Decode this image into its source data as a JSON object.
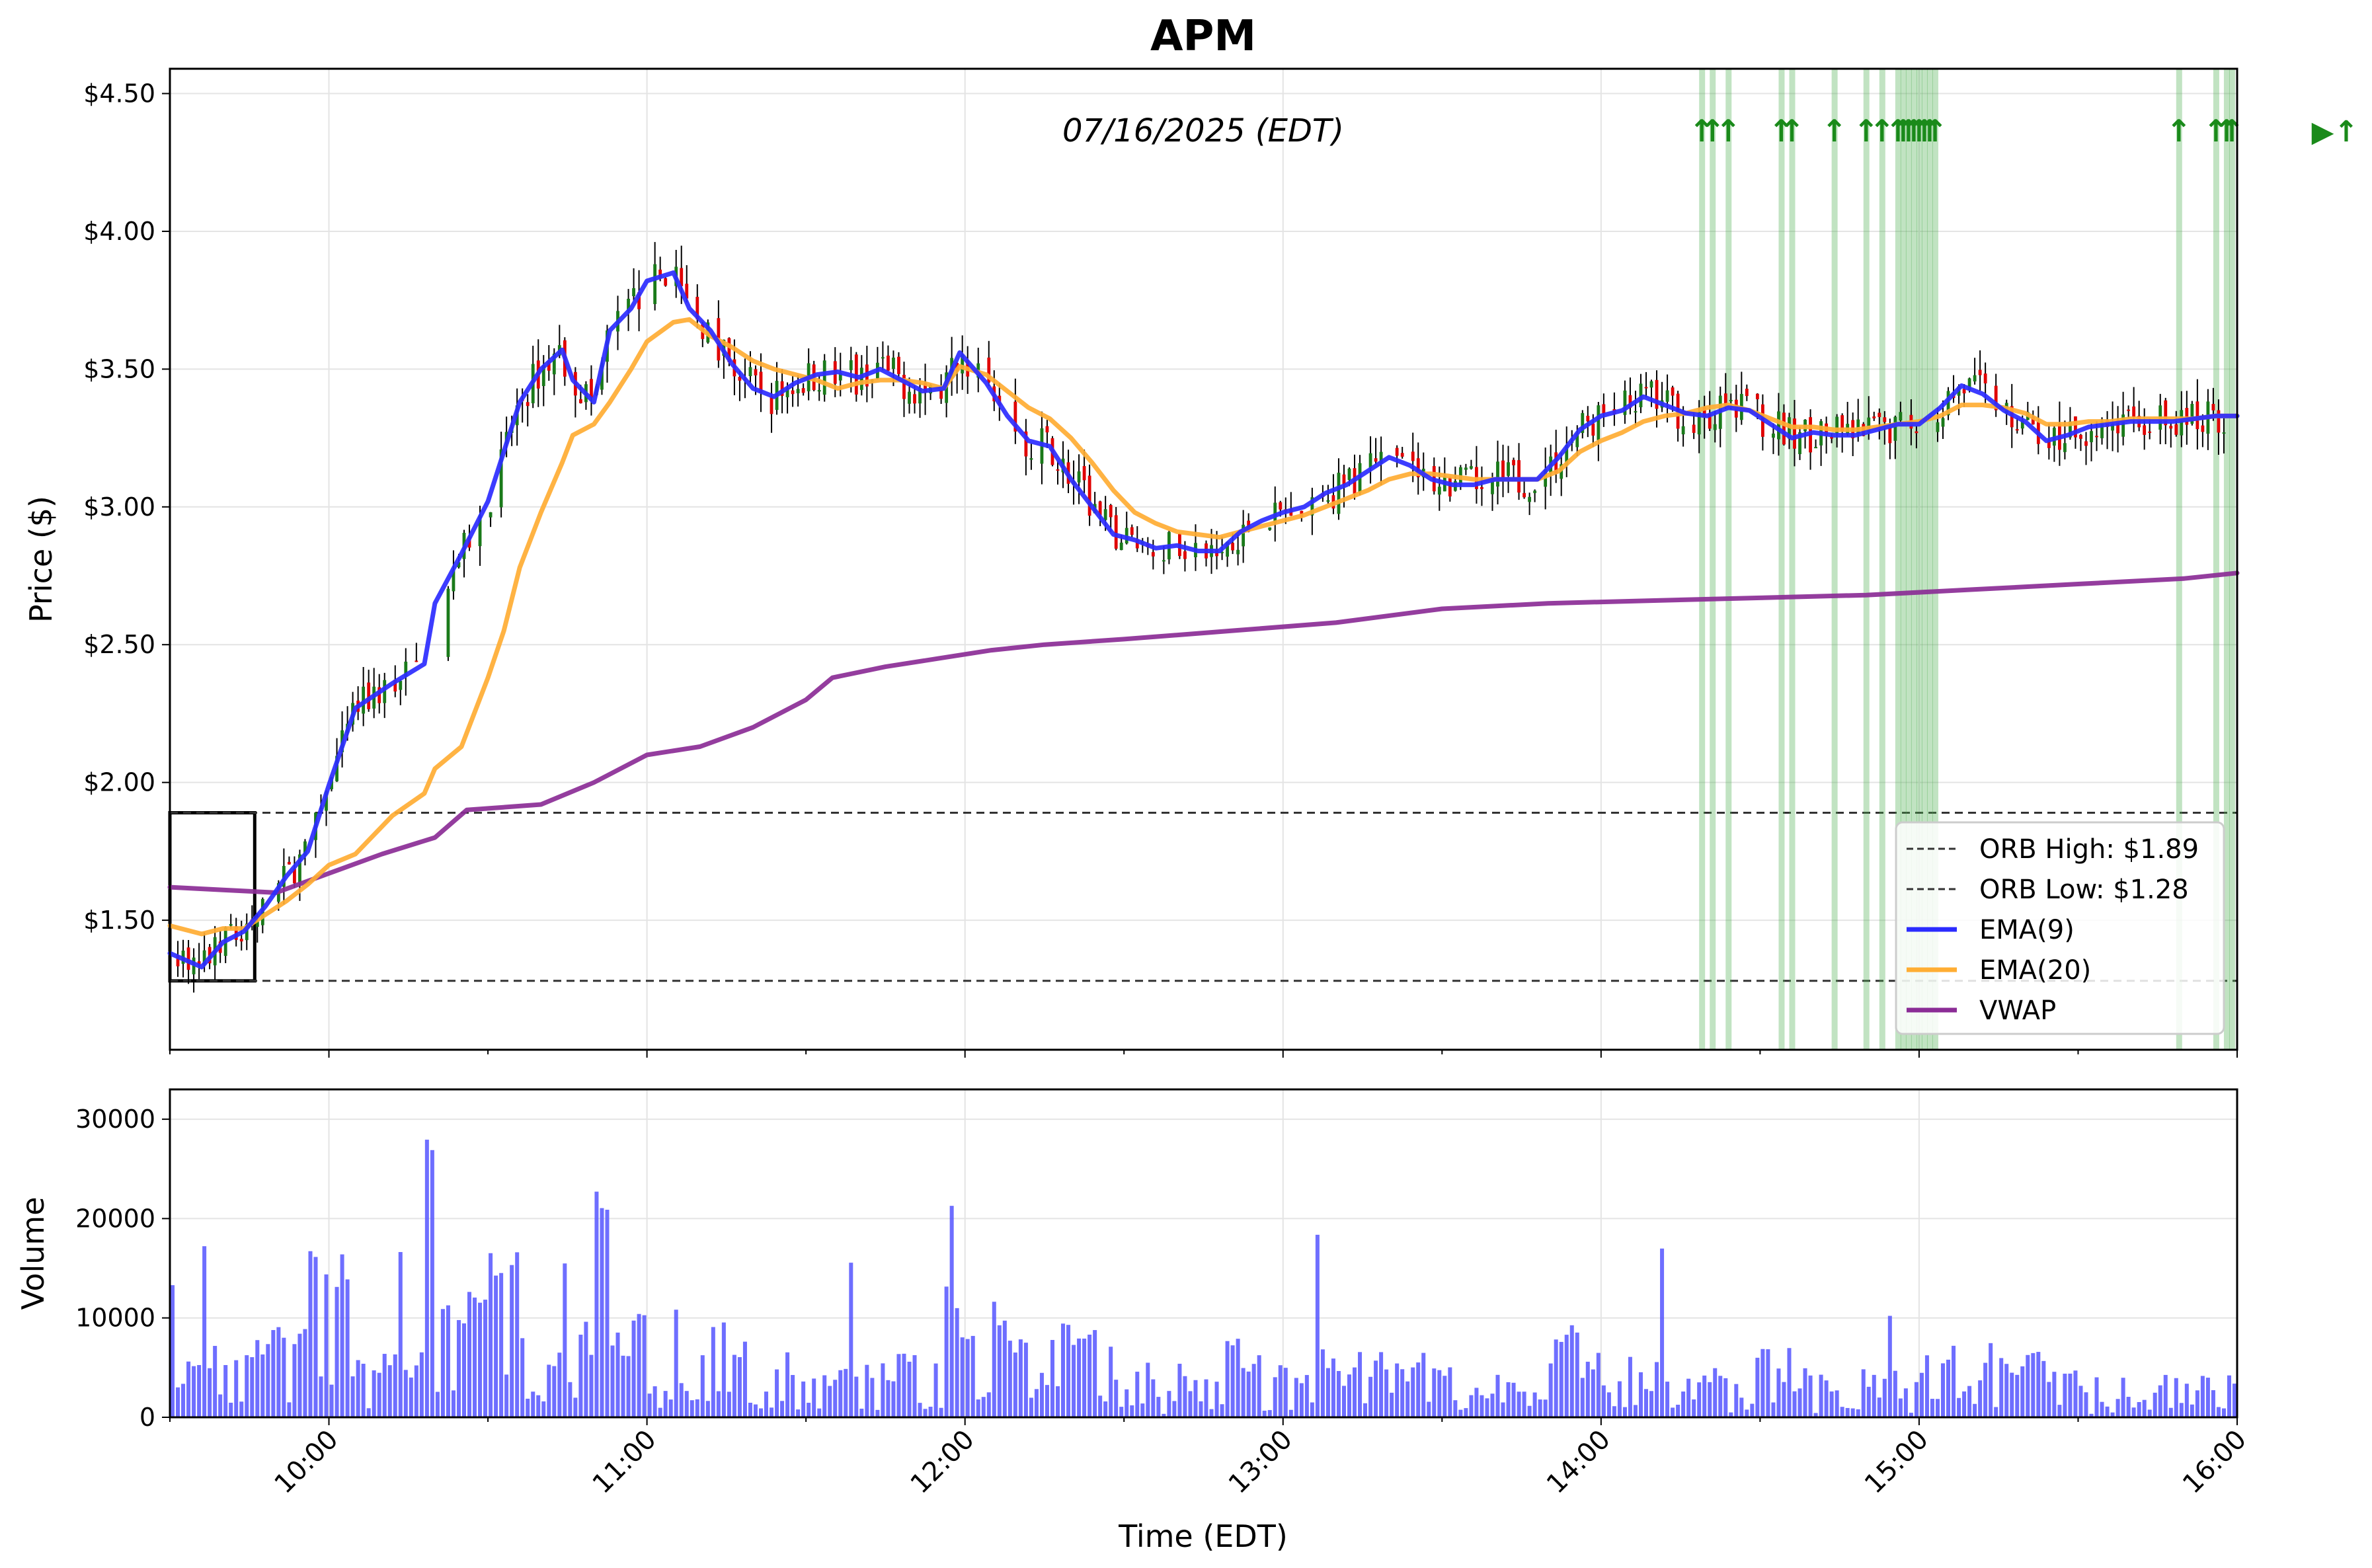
{
  "chart_data": {
    "type": "candlestick",
    "title": "APM",
    "date_label": "07/16/2025 (EDT)",
    "xlabel": "Time (EDT)",
    "x_range": [
      "09:30",
      "16:00"
    ],
    "x_ticks": [
      "10:00",
      "11:00",
      "12:00",
      "13:00",
      "14:00",
      "15:00",
      "16:00"
    ],
    "price_panel": {
      "ylabel": "Price ($)",
      "ylim": [
        1.03,
        4.59
      ],
      "y_ticks": [
        "$1.50",
        "$2.00",
        "$2.50",
        "$3.00",
        "$3.50",
        "$4.00",
        "$4.50"
      ],
      "y_tick_values": [
        1.5,
        2.0,
        2.5,
        3.0,
        3.5,
        4.0,
        4.5
      ],
      "orb_high": 1.89,
      "orb_low": 1.28,
      "orb_window": [
        "09:30",
        "09:46"
      ],
      "legend": [
        {
          "label": "ORB High: $1.89",
          "style": "dashed",
          "color": "#333333"
        },
        {
          "label": "ORB Low: $1.28",
          "style": "dashed",
          "color": "#333333"
        },
        {
          "label": "EMA(9)",
          "style": "solid",
          "color": "#2b2bff"
        },
        {
          "label": "EMA(20)",
          "style": "solid",
          "color": "#ffad33"
        },
        {
          "label": "VWAP",
          "style": "solid",
          "color": "#8b2c96"
        }
      ],
      "ema9": [
        [
          "09:30",
          1.38
        ],
        [
          "09:36",
          1.33
        ],
        [
          "09:40",
          1.42
        ],
        [
          "09:44",
          1.46
        ],
        [
          "09:48",
          1.55
        ],
        [
          "09:52",
          1.66
        ],
        [
          "09:56",
          1.75
        ],
        [
          "10:00",
          1.99
        ],
        [
          "10:05",
          2.27
        ],
        [
          "10:12",
          2.36
        ],
        [
          "10:18",
          2.43
        ],
        [
          "10:20",
          2.65
        ],
        [
          "10:25",
          2.83
        ],
        [
          "10:30",
          3.02
        ],
        [
          "10:33",
          3.2
        ],
        [
          "10:36",
          3.38
        ],
        [
          "10:40",
          3.5
        ],
        [
          "10:44",
          3.57
        ],
        [
          "10:46",
          3.46
        ],
        [
          "10:50",
          3.38
        ],
        [
          "10:53",
          3.64
        ],
        [
          "10:57",
          3.72
        ],
        [
          "11:00",
          3.82
        ],
        [
          "11:05",
          3.85
        ],
        [
          "11:08",
          3.72
        ],
        [
          "11:12",
          3.64
        ],
        [
          "11:16",
          3.52
        ],
        [
          "11:20",
          3.43
        ],
        [
          "11:24",
          3.4
        ],
        [
          "11:28",
          3.45
        ],
        [
          "11:32",
          3.48
        ],
        [
          "11:36",
          3.49
        ],
        [
          "11:40",
          3.47
        ],
        [
          "11:44",
          3.5
        ],
        [
          "11:48",
          3.46
        ],
        [
          "11:52",
          3.42
        ],
        [
          "11:56",
          3.43
        ],
        [
          "11:59",
          3.56
        ],
        [
          "12:04",
          3.45
        ],
        [
          "12:08",
          3.33
        ],
        [
          "12:12",
          3.24
        ],
        [
          "12:16",
          3.22
        ],
        [
          "12:20",
          3.1
        ],
        [
          "12:24",
          3.0
        ],
        [
          "12:28",
          2.9
        ],
        [
          "12:32",
          2.88
        ],
        [
          "12:36",
          2.85
        ],
        [
          "12:40",
          2.86
        ],
        [
          "12:44",
          2.84
        ],
        [
          "12:48",
          2.84
        ],
        [
          "12:52",
          2.91
        ],
        [
          "12:56",
          2.95
        ],
        [
          "13:00",
          2.98
        ],
        [
          "13:04",
          3.0
        ],
        [
          "13:08",
          3.05
        ],
        [
          "13:12",
          3.08
        ],
        [
          "13:16",
          3.13
        ],
        [
          "13:20",
          3.18
        ],
        [
          "13:24",
          3.15
        ],
        [
          "13:28",
          3.1
        ],
        [
          "13:32",
          3.08
        ],
        [
          "13:36",
          3.08
        ],
        [
          "13:40",
          3.1
        ],
        [
          "13:44",
          3.1
        ],
        [
          "13:48",
          3.1
        ],
        [
          "13:52",
          3.18
        ],
        [
          "13:56",
          3.28
        ],
        [
          "14:00",
          3.33
        ],
        [
          "14:04",
          3.35
        ],
        [
          "14:08",
          3.4
        ],
        [
          "14:12",
          3.37
        ],
        [
          "14:16",
          3.34
        ],
        [
          "14:20",
          3.33
        ],
        [
          "14:24",
          3.36
        ],
        [
          "14:28",
          3.35
        ],
        [
          "14:32",
          3.3
        ],
        [
          "14:36",
          3.25
        ],
        [
          "14:40",
          3.27
        ],
        [
          "14:44",
          3.26
        ],
        [
          "14:48",
          3.26
        ],
        [
          "14:52",
          3.28
        ],
        [
          "14:56",
          3.3
        ],
        [
          "15:00",
          3.3
        ],
        [
          "15:04",
          3.36
        ],
        [
          "15:08",
          3.44
        ],
        [
          "15:12",
          3.41
        ],
        [
          "15:16",
          3.35
        ],
        [
          "15:20",
          3.31
        ],
        [
          "15:24",
          3.24
        ],
        [
          "15:28",
          3.26
        ],
        [
          "15:32",
          3.29
        ],
        [
          "15:36",
          3.3
        ],
        [
          "15:40",
          3.31
        ],
        [
          "15:44",
          3.31
        ],
        [
          "15:48",
          3.31
        ],
        [
          "15:52",
          3.32
        ],
        [
          "15:56",
          3.33
        ],
        [
          "16:00",
          3.33
        ]
      ],
      "ema20": [
        [
          "09:30",
          1.48
        ],
        [
          "09:36",
          1.45
        ],
        [
          "09:40",
          1.47
        ],
        [
          "09:44",
          1.47
        ],
        [
          "09:48",
          1.52
        ],
        [
          "09:52",
          1.57
        ],
        [
          "09:56",
          1.63
        ],
        [
          "10:00",
          1.7
        ],
        [
          "10:05",
          1.74
        ],
        [
          "10:12",
          1.88
        ],
        [
          "10:18",
          1.96
        ],
        [
          "10:20",
          2.05
        ],
        [
          "10:25",
          2.13
        ],
        [
          "10:30",
          2.38
        ],
        [
          "10:33",
          2.55
        ],
        [
          "10:36",
          2.78
        ],
        [
          "10:40",
          2.98
        ],
        [
          "10:44",
          3.16
        ],
        [
          "10:46",
          3.26
        ],
        [
          "10:50",
          3.3
        ],
        [
          "10:53",
          3.38
        ],
        [
          "10:57",
          3.5
        ],
        [
          "11:00",
          3.6
        ],
        [
          "11:05",
          3.67
        ],
        [
          "11:08",
          3.68
        ],
        [
          "11:12",
          3.62
        ],
        [
          "11:16",
          3.58
        ],
        [
          "11:20",
          3.53
        ],
        [
          "11:24",
          3.5
        ],
        [
          "11:28",
          3.48
        ],
        [
          "11:32",
          3.46
        ],
        [
          "11:36",
          3.43
        ],
        [
          "11:40",
          3.45
        ],
        [
          "11:44",
          3.46
        ],
        [
          "11:48",
          3.46
        ],
        [
          "11:52",
          3.45
        ],
        [
          "11:56",
          3.43
        ],
        [
          "11:59",
          3.51
        ],
        [
          "12:04",
          3.48
        ],
        [
          "12:08",
          3.42
        ],
        [
          "12:12",
          3.36
        ],
        [
          "12:16",
          3.32
        ],
        [
          "12:20",
          3.25
        ],
        [
          "12:24",
          3.16
        ],
        [
          "12:28",
          3.06
        ],
        [
          "12:32",
          2.98
        ],
        [
          "12:36",
          2.94
        ],
        [
          "12:40",
          2.91
        ],
        [
          "12:44",
          2.9
        ],
        [
          "12:48",
          2.89
        ],
        [
          "12:52",
          2.91
        ],
        [
          "12:56",
          2.93
        ],
        [
          "13:00",
          2.95
        ],
        [
          "13:04",
          2.97
        ],
        [
          "13:08",
          3.0
        ],
        [
          "13:12",
          3.03
        ],
        [
          "13:16",
          3.06
        ],
        [
          "13:20",
          3.1
        ],
        [
          "13:24",
          3.12
        ],
        [
          "13:28",
          3.12
        ],
        [
          "13:32",
          3.11
        ],
        [
          "13:36",
          3.1
        ],
        [
          "13:40",
          3.1
        ],
        [
          "13:44",
          3.1
        ],
        [
          "13:48",
          3.1
        ],
        [
          "13:52",
          3.13
        ],
        [
          "13:56",
          3.2
        ],
        [
          "14:00",
          3.24
        ],
        [
          "14:04",
          3.27
        ],
        [
          "14:08",
          3.31
        ],
        [
          "14:12",
          3.33
        ],
        [
          "14:16",
          3.34
        ],
        [
          "14:20",
          3.36
        ],
        [
          "14:24",
          3.37
        ],
        [
          "14:28",
          3.35
        ],
        [
          "14:32",
          3.32
        ],
        [
          "14:36",
          3.29
        ],
        [
          "14:40",
          3.29
        ],
        [
          "14:44",
          3.28
        ],
        [
          "14:48",
          3.28
        ],
        [
          "14:52",
          3.29
        ],
        [
          "14:56",
          3.3
        ],
        [
          "15:00",
          3.31
        ],
        [
          "15:04",
          3.33
        ],
        [
          "15:08",
          3.37
        ],
        [
          "15:12",
          3.37
        ],
        [
          "15:16",
          3.36
        ],
        [
          "15:20",
          3.34
        ],
        [
          "15:24",
          3.3
        ],
        [
          "15:28",
          3.3
        ],
        [
          "15:32",
          3.31
        ],
        [
          "15:36",
          3.31
        ],
        [
          "15:40",
          3.32
        ],
        [
          "15:44",
          3.32
        ],
        [
          "15:48",
          3.32
        ],
        [
          "15:52",
          3.32
        ],
        [
          "15:56",
          3.33
        ],
        [
          "16:00",
          3.33
        ]
      ],
      "vwap": [
        [
          "09:30",
          1.62
        ],
        [
          "09:40",
          1.61
        ],
        [
          "09:50",
          1.6
        ],
        [
          "10:00",
          1.67
        ],
        [
          "10:10",
          1.74
        ],
        [
          "10:20",
          1.8
        ],
        [
          "10:26",
          1.9
        ],
        [
          "10:40",
          1.92
        ],
        [
          "10:50",
          2.0
        ],
        [
          "11:00",
          2.1
        ],
        [
          "11:10",
          2.13
        ],
        [
          "11:20",
          2.2
        ],
        [
          "11:30",
          2.3
        ],
        [
          "11:35",
          2.38
        ],
        [
          "11:45",
          2.42
        ],
        [
          "11:55",
          2.45
        ],
        [
          "12:05",
          2.48
        ],
        [
          "12:15",
          2.5
        ],
        [
          "12:30",
          2.52
        ],
        [
          "12:50",
          2.55
        ],
        [
          "13:10",
          2.58
        ],
        [
          "13:30",
          2.63
        ],
        [
          "13:50",
          2.65
        ],
        [
          "14:10",
          2.66
        ],
        [
          "14:30",
          2.67
        ],
        [
          "14:50",
          2.68
        ],
        [
          "15:10",
          2.7
        ],
        [
          "15:30",
          2.72
        ],
        [
          "15:50",
          2.74
        ],
        [
          "16:00",
          2.76
        ]
      ],
      "signals": [
        "14:19",
        "14:21",
        "14:24",
        "14:34",
        "14:36",
        "14:44",
        "14:50",
        "14:53",
        "14:56",
        "14:57",
        "14:58",
        "14:59",
        "15:00",
        "15:01",
        "15:02",
        "15:03",
        "15:49",
        "15:56",
        "15:58",
        "15:59"
      ]
    },
    "volume_panel": {
      "ylabel": "Volume",
      "ylim": [
        0,
        33000
      ],
      "y_ticks": [
        "0",
        "10000",
        "20000",
        "30000"
      ],
      "y_tick_values": [
        0,
        10000,
        20000,
        30000
      ],
      "color": "#5555ff"
    }
  }
}
